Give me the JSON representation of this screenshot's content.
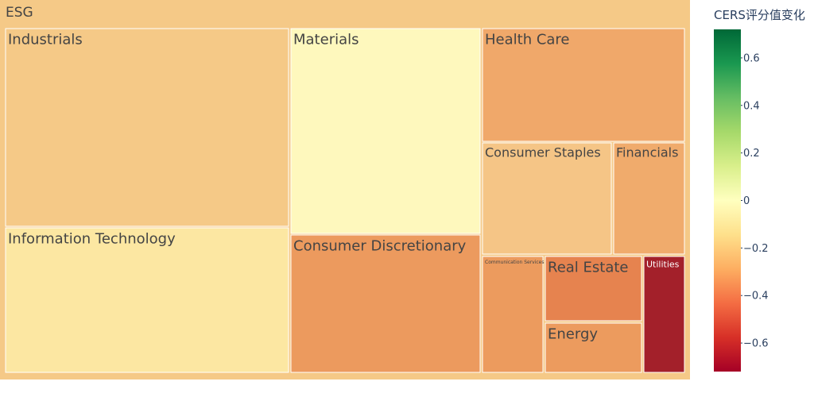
{
  "chart_data": {
    "type": "treemap",
    "root": {
      "label": "ESG",
      "color": "#f5c987"
    },
    "colorbar": {
      "title": "CERS评分值变化",
      "range": [
        -0.72,
        0.72
      ],
      "ticks": [
        "0.6",
        "0.4",
        "0.2",
        "0",
        "−0.2",
        "−0.4",
        "−0.6"
      ],
      "tick_values": [
        0.6,
        0.4,
        0.2,
        0,
        -0.2,
        -0.4,
        -0.6
      ],
      "colorscale": [
        "#a50026",
        "#d73027",
        "#f46d43",
        "#fdae61",
        "#fee08b",
        "#ffffbf",
        "#d9ef8b",
        "#a6d96a",
        "#66bd63",
        "#1a9850",
        "#006837"
      ]
    },
    "tiles": [
      {
        "label": "Industrials",
        "color": "#f5c987",
        "text_color": "#444444"
      },
      {
        "label": "Information Technology",
        "color": "#fce7a2",
        "text_color": "#444444"
      },
      {
        "label": "Materials",
        "color": "#fef8bd",
        "text_color": "#444444"
      },
      {
        "label": "Consumer Discretionary",
        "color": "#ec9a5e",
        "text_color": "#444444"
      },
      {
        "label": "Health Care",
        "color": "#f0a86a",
        "text_color": "#444444"
      },
      {
        "label": "Consumer Staples",
        "color": "#f5c586",
        "text_color": "#444444"
      },
      {
        "label": "Financials",
        "color": "#f0ab6c",
        "text_color": "#444444"
      },
      {
        "label": "Communication Services",
        "color": "#ec9b5e",
        "text_color": "#444444"
      },
      {
        "label": "Real Estate",
        "color": "#e6834f",
        "text_color": "#444444"
      },
      {
        "label": "Utilities",
        "color": "#a3202a",
        "text_color": "#ffffff"
      },
      {
        "label": "Energy",
        "color": "#ec9b5e",
        "text_color": "#444444"
      }
    ]
  }
}
